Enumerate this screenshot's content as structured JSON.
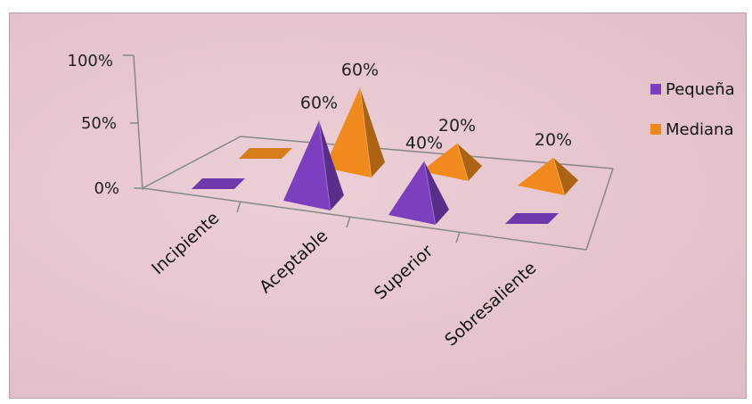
{
  "chart_data": {
    "type": "bar",
    "style": "3d-pyramid",
    "title": "",
    "xlabel": "",
    "ylabel": "",
    "ylim": [
      0,
      100
    ],
    "ytick_labels": [
      "0%",
      "50%",
      "100%"
    ],
    "categories": [
      "Incipiente",
      "Aceptable",
      "Superior",
      "Sobresaliente"
    ],
    "series": [
      {
        "name": "Pequeña",
        "color": "#7b3fbf",
        "values": [
          0,
          60,
          40,
          0
        ],
        "data_labels": [
          "",
          "60%",
          "40%",
          ""
        ]
      },
      {
        "name": "Mediana",
        "color": "#f08a1c",
        "values": [
          0,
          60,
          20,
          20
        ],
        "data_labels": [
          "",
          "60%",
          "20%",
          "20%"
        ]
      }
    ],
    "legend_position": "right",
    "grid": false
  }
}
